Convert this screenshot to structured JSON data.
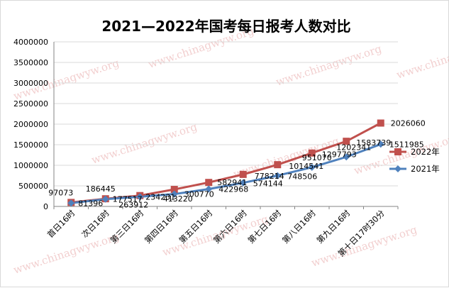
{
  "chart_data": {
    "type": "line",
    "title": "2021—2022年国考每日报考人数对比",
    "xlabel": "",
    "ylabel": "",
    "categories": [
      "首日16时",
      "次日16时",
      "第三日16时",
      "第四日16时",
      "第五日16时",
      "第六日16时",
      "第七日16时",
      "第八日16时",
      "第九日16时",
      "第十日17时30分"
    ],
    "ylim": [
      0,
      4000000
    ],
    "yticks": [
      0,
      500000,
      1000000,
      1500000,
      2000000,
      2500000,
      3000000,
      3500000,
      4000000
    ],
    "grid": true,
    "legend": "right",
    "series": [
      {
        "name": "2022年",
        "color": "#c0504d",
        "marker": "square",
        "values": [
          97073,
          186445,
          263912,
          413220,
          582941,
          778214,
          1014541,
          1297793,
          1583739,
          2026060
        ]
      },
      {
        "name": "2021年",
        "color": "#4f81bd",
        "marker": "diamond",
        "values": [
          81396,
          177517,
          234231,
          300770,
          422968,
          574144,
          748506,
          951070,
          1202341,
          1511985
        ]
      }
    ]
  },
  "watermark": "www.chinagwyw.org"
}
